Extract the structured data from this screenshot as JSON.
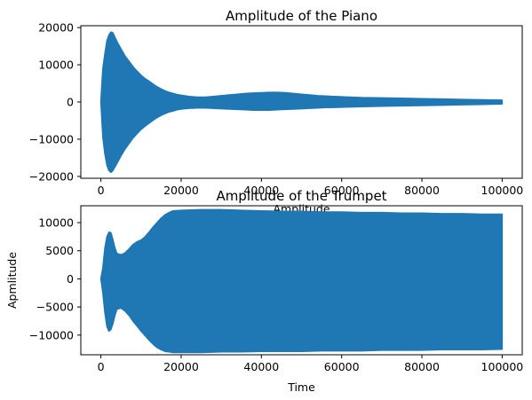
{
  "chart_data": [
    {
      "type": "area",
      "title": "Amplitude of the Piano",
      "xlabel": "Amplitude",
      "ylabel": "",
      "xlim": [
        -5000,
        105000
      ],
      "ylim": [
        -20500,
        20500
      ],
      "xticks": [
        0,
        20000,
        40000,
        60000,
        80000,
        100000
      ],
      "xtick_labels": [
        "0",
        "20000",
        "40000",
        "60000",
        "80000",
        "100000"
      ],
      "yticks": [
        -20000,
        -10000,
        0,
        10000,
        20000
      ],
      "ytick_labels": [
        "−20000",
        "−10000",
        "0",
        "10000",
        "20000"
      ],
      "series": [
        {
          "color": "#1f77b4",
          "x": [
            0,
            200,
            500,
            1000,
            1500,
            2000,
            2500,
            3000,
            4000,
            5000,
            6000,
            7000,
            8000,
            9000,
            10000,
            11000,
            12000,
            13000,
            14000,
            15000,
            16000,
            17000,
            18000,
            19000,
            20000,
            22000,
            24000,
            26000,
            28000,
            30000,
            32000,
            34000,
            36000,
            38000,
            40000,
            42000,
            44000,
            46000,
            48000,
            50000,
            52000,
            54000,
            56000,
            58000,
            60000,
            65000,
            70000,
            75000,
            80000,
            85000,
            90000,
            95000,
            100000
          ],
          "upper": [
            0,
            4000,
            9000,
            13000,
            16500,
            18000,
            18800,
            18600,
            16200,
            14300,
            12400,
            11000,
            9500,
            8300,
            7200,
            6300,
            5600,
            4800,
            4100,
            3500,
            3000,
            2600,
            2300,
            2000,
            1800,
            1500,
            1300,
            1300,
            1500,
            1700,
            1900,
            2100,
            2300,
            2400,
            2500,
            2600,
            2600,
            2500,
            2300,
            2100,
            1900,
            1700,
            1600,
            1500,
            1400,
            1200,
            1100,
            1000,
            900,
            800,
            700,
            600,
            500
          ],
          "lower": [
            0,
            -4000,
            -9500,
            -14000,
            -17000,
            -18400,
            -18900,
            -18400,
            -16500,
            -14500,
            -12700,
            -11200,
            -9700,
            -8500,
            -7400,
            -6500,
            -5700,
            -4900,
            -4200,
            -3600,
            -3100,
            -2700,
            -2400,
            -2100,
            -1900,
            -1700,
            -1600,
            -1600,
            -1700,
            -1800,
            -1900,
            -2000,
            -2100,
            -2200,
            -2200,
            -2200,
            -2100,
            -2000,
            -1900,
            -1800,
            -1700,
            -1600,
            -1500,
            -1450,
            -1400,
            -1250,
            -1150,
            -1050,
            -950,
            -850,
            -750,
            -650,
            -550
          ]
        }
      ]
    },
    {
      "type": "area",
      "title": "Amplitude of the Trumpet",
      "xlabel": "Time",
      "ylabel": "Apmlitude",
      "xlim": [
        -5000,
        105000
      ],
      "ylim": [
        -13500,
        13000
      ],
      "xticks": [
        0,
        20000,
        40000,
        60000,
        80000,
        100000
      ],
      "xtick_labels": [
        "0",
        "20000",
        "40000",
        "60000",
        "80000",
        "100000"
      ],
      "yticks": [
        -10000,
        -5000,
        0,
        5000,
        10000
      ],
      "ytick_labels": [
        "−10000",
        "−5000",
        "0",
        "5000",
        "10000"
      ],
      "series": [
        {
          "color": "#1f77b4",
          "x": [
            0,
            500,
            1000,
            1500,
            2000,
            2500,
            3000,
            3500,
            4000,
            5000,
            6000,
            7000,
            8000,
            9000,
            10000,
            11000,
            12000,
            13000,
            14000,
            15000,
            16000,
            17000,
            18000,
            20000,
            25000,
            30000,
            35000,
            40000,
            45000,
            50000,
            55000,
            60000,
            65000,
            70000,
            75000,
            80000,
            85000,
            90000,
            95000,
            100000
          ],
          "upper": [
            0,
            2000,
            5500,
            7500,
            8300,
            8200,
            7000,
            5500,
            4500,
            4300,
            4600,
            5300,
            6100,
            6600,
            6900,
            7500,
            8300,
            9200,
            10000,
            10800,
            11400,
            11800,
            12100,
            12200,
            12300,
            12300,
            12200,
            12100,
            12000,
            12000,
            11900,
            11900,
            11800,
            11800,
            11700,
            11700,
            11600,
            11600,
            11500,
            11500
          ],
          "lower": [
            0,
            -2500,
            -6000,
            -8500,
            -9300,
            -9000,
            -8000,
            -6500,
            -5400,
            -5200,
            -5700,
            -6500,
            -7500,
            -8400,
            -9300,
            -10100,
            -10900,
            -11600,
            -12200,
            -12600,
            -12900,
            -13000,
            -13100,
            -13100,
            -13100,
            -13000,
            -13000,
            -12900,
            -12900,
            -12900,
            -12800,
            -12800,
            -12800,
            -12700,
            -12700,
            -12700,
            -12600,
            -12600,
            -12600,
            -12500
          ]
        }
      ]
    }
  ]
}
